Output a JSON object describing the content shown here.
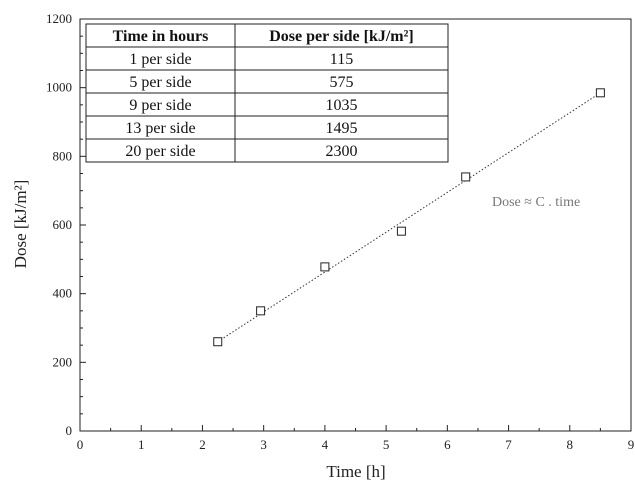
{
  "chart_data": {
    "type": "scatter",
    "xlabel": "Time [h]",
    "ylabel": "Dose [kJ/m²]",
    "xlim": [
      0,
      9
    ],
    "ylim": [
      0,
      1200
    ],
    "x_ticks": [
      "0",
      "1",
      "2",
      "3",
      "4",
      "5",
      "6",
      "7",
      "8",
      "9"
    ],
    "y_ticks": [
      "0",
      "200",
      "400",
      "600",
      "800",
      "1000",
      "1200"
    ],
    "series": [
      {
        "points": [
          {
            "x": 2.25,
            "y": 260
          },
          {
            "x": 2.95,
            "y": 350
          },
          {
            "x": 4.0,
            "y": 478
          },
          {
            "x": 5.25,
            "y": 582
          },
          {
            "x": 6.3,
            "y": 740
          },
          {
            "x": 8.5,
            "y": 985
          }
        ]
      }
    ],
    "trendline": {
      "style": "dotted",
      "from": {
        "x": 2.25,
        "y": 260
      },
      "to": {
        "x": 8.5,
        "y": 985
      }
    },
    "annotation": "Dose ≈ C . time",
    "grid": false
  },
  "table": {
    "headers": [
      "Time in hours",
      "Dose per side [kJ/m²]"
    ],
    "rows": [
      [
        "1 per side",
        "115"
      ],
      [
        "5 per side",
        "575"
      ],
      [
        "9 per side",
        "1035"
      ],
      [
        "13 per side",
        "1495"
      ],
      [
        "20 per side",
        "2300"
      ]
    ]
  }
}
